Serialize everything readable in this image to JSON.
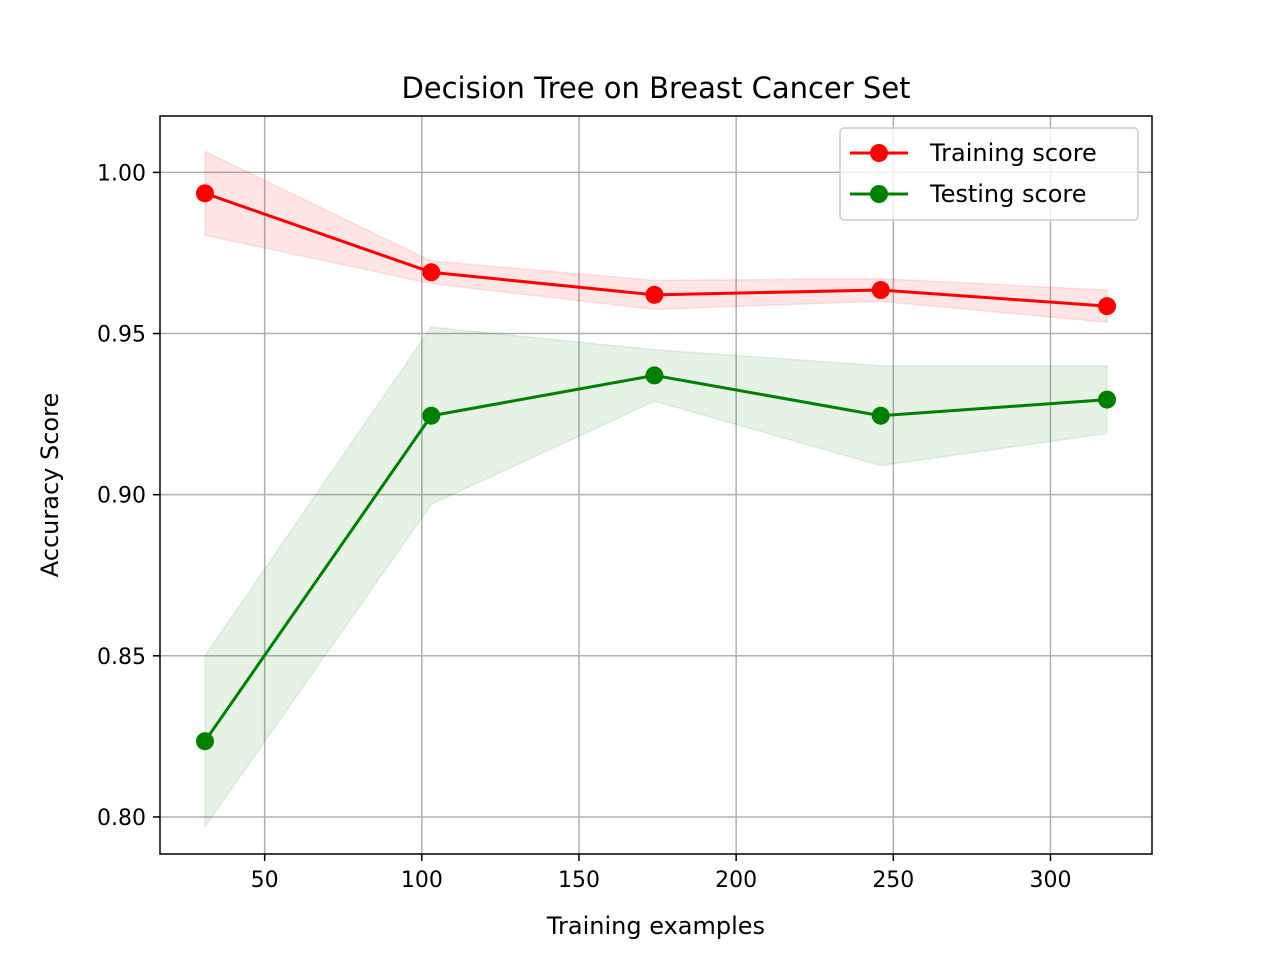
{
  "chart_data": {
    "type": "line",
    "title": "Decision Tree on Breast Cancer Set",
    "xlabel": "Training examples",
    "ylabel": "Accuracy Score",
    "x": [
      31,
      103,
      174,
      246,
      318
    ],
    "xlim": [
      16.7,
      332.3
    ],
    "ylim": [
      0.7885,
      1.0175
    ],
    "xticks": [
      50,
      100,
      150,
      200,
      250,
      300
    ],
    "yticks": [
      0.8,
      0.85,
      0.9,
      0.95,
      1.0
    ],
    "xtick_labels": [
      "50",
      "100",
      "150",
      "200",
      "250",
      "300"
    ],
    "ytick_labels": [
      "0.80",
      "0.85",
      "0.90",
      "0.95",
      "1.00"
    ],
    "grid": true,
    "legend_position": "top-right",
    "series": [
      {
        "name": "Training score",
        "color": "#ff0000",
        "band_color": "#ff0000",
        "values": [
          0.9935,
          0.969,
          0.962,
          0.9635,
          0.9585
        ],
        "lower": [
          0.9805,
          0.9655,
          0.9575,
          0.96,
          0.9535
        ],
        "upper": [
          1.0065,
          0.9725,
          0.9665,
          0.967,
          0.9635
        ]
      },
      {
        "name": "Testing score",
        "color": "#008000",
        "band_color": "#008000",
        "values": [
          0.8235,
          0.9245,
          0.937,
          0.9245,
          0.9295
        ],
        "lower": [
          0.797,
          0.897,
          0.929,
          0.909,
          0.919
        ],
        "upper": [
          0.85,
          0.952,
          0.945,
          0.94,
          0.94
        ]
      }
    ]
  }
}
